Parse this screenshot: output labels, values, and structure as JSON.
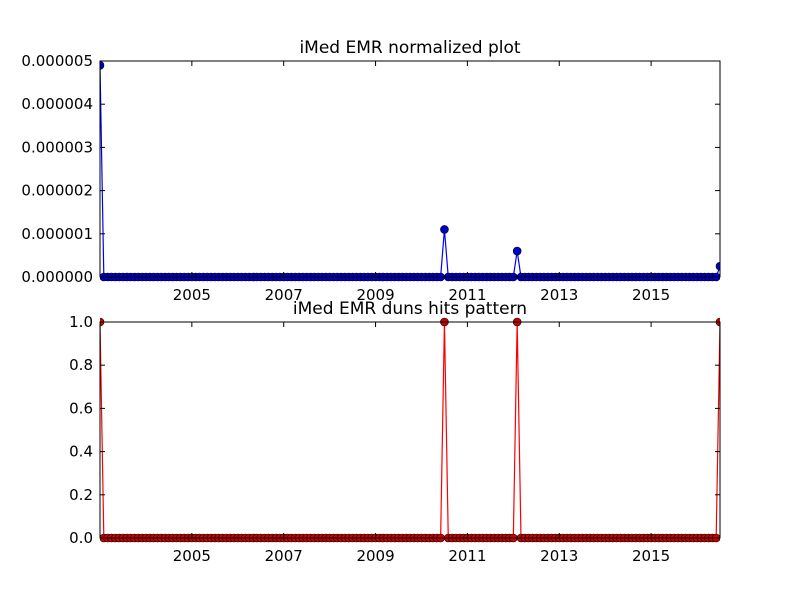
{
  "chart_data": [
    {
      "type": "line",
      "title": "iMed EMR normalized plot",
      "xlabel": "",
      "ylabel": "",
      "x_ticks": [
        "2005",
        "2007",
        "2009",
        "2011",
        "2013",
        "2015"
      ],
      "y_ticks": [
        "0.000000",
        "0.000001",
        "0.000002",
        "0.000003",
        "0.000004",
        "0.000005"
      ],
      "xlim": [
        "2003-01",
        "2016-07"
      ],
      "ylim": [
        0,
        5e-06
      ],
      "series_color": "#0000ff",
      "marker_color": "#0000cc",
      "grid": false,
      "baseline_value": 0,
      "peaks": [
        {
          "date": "2003-01",
          "value": 4.9e-06
        },
        {
          "date": "2010-07",
          "value": 1.1e-06
        },
        {
          "date": "2012-02",
          "value": 6e-07
        },
        {
          "date": "2016-07",
          "value": 2.5e-07
        }
      ]
    },
    {
      "type": "line",
      "title": "iMed EMR duns hits pattern",
      "xlabel": "",
      "ylabel": "",
      "x_ticks": [
        "2005",
        "2007",
        "2009",
        "2011",
        "2013",
        "2015"
      ],
      "y_ticks": [
        "0.0",
        "0.2",
        "0.4",
        "0.6",
        "0.8",
        "1.0"
      ],
      "xlim": [
        "2003-01",
        "2016-07"
      ],
      "ylim": [
        0,
        1
      ],
      "series_color": "#ff0000",
      "marker_color": "#cc0000",
      "grid": false,
      "baseline_value": 0,
      "peaks": [
        {
          "date": "2003-01",
          "value": 1.0
        },
        {
          "date": "2010-07",
          "value": 1.0
        },
        {
          "date": "2012-02",
          "value": 1.0
        },
        {
          "date": "2016-07",
          "value": 1.0
        }
      ]
    }
  ]
}
